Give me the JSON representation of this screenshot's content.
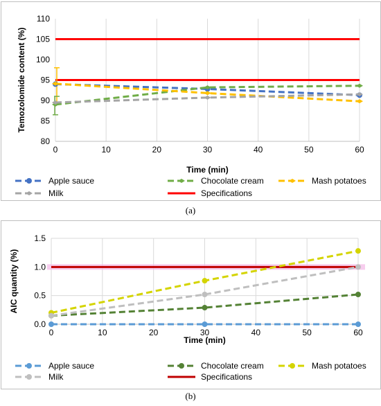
{
  "chart_data": [
    {
      "id": "a",
      "type": "line",
      "caption": "(a)",
      "xlabel": "Time (min)",
      "ylabel": "Temozolomide content (%)",
      "xlim": [
        0,
        60
      ],
      "ylim": [
        80,
        110
      ],
      "xticks": [
        0,
        10,
        20,
        30,
        40,
        50,
        60
      ],
      "yticks": [
        80,
        85,
        90,
        95,
        100,
        105,
        110
      ],
      "grid": "vertical",
      "legend": "bottom",
      "series": [
        {
          "name": "Apple sauce",
          "color": "#4472c4",
          "style": "dashed",
          "marker": "circle",
          "x": [
            0,
            30,
            60
          ],
          "y": [
            94.0,
            92.8,
            91.3
          ]
        },
        {
          "name": "Chocolate cream",
          "color": "#70ad47",
          "style": "dashed",
          "marker": "diamond",
          "x": [
            0,
            30,
            60
          ],
          "y": [
            89.0,
            93.2,
            93.6
          ]
        },
        {
          "name": "Mash potatoes",
          "color": "#ffc000",
          "style": "dashed",
          "marker": "diamond",
          "x": [
            0,
            30,
            60
          ],
          "y": [
            94.1,
            91.8,
            89.8
          ]
        },
        {
          "name": "Milk",
          "color": "#a5a5a5",
          "style": "dashed",
          "marker": "diamond",
          "x": [
            0,
            30,
            60
          ],
          "y": [
            89.5,
            90.7,
            91.5
          ]
        },
        {
          "name": "Specifications",
          "color": "#ff0000",
          "style": "solid",
          "marker": "none",
          "lines": [
            95,
            105
          ]
        }
      ],
      "error_bars": [
        {
          "series": "Mash potatoes",
          "x": 0,
          "y": 94.1,
          "low": 89.5,
          "high": 98.0
        },
        {
          "series": "Chocolate cream",
          "x": 0,
          "y": 89.0,
          "low": 86.5,
          "high": 91.0
        }
      ]
    },
    {
      "id": "b",
      "type": "line",
      "caption": "(b)",
      "xlabel": "Time (min)",
      "ylabel": "AIC quantity (%)",
      "xlim": [
        0,
        60
      ],
      "ylim": [
        0,
        1.5
      ],
      "xticks": [
        0,
        10,
        20,
        30,
        40,
        50,
        60
      ],
      "yticks": [
        0.0,
        0.5,
        1.0,
        1.5
      ],
      "ytick_labels": [
        "0.0",
        "0.5",
        "1.0",
        "1.5"
      ],
      "grid": "both",
      "legend": "bottom",
      "series": [
        {
          "name": "Apple sauce",
          "color": "#5b9bd5",
          "style": "dashed",
          "marker": "circle",
          "x": [
            0,
            30,
            60
          ],
          "y": [
            0.0,
            0.0,
            0.0
          ]
        },
        {
          "name": "Chocolate cream",
          "color": "#548235",
          "style": "dashed",
          "marker": "circle",
          "x": [
            0,
            30,
            60
          ],
          "y": [
            0.15,
            0.29,
            0.52
          ]
        },
        {
          "name": "Mash potatoes",
          "color": "#d4d400",
          "style": "dashed",
          "marker": "circle",
          "x": [
            0,
            30,
            60
          ],
          "y": [
            0.2,
            0.76,
            1.28
          ]
        },
        {
          "name": "Milk",
          "color": "#bfbfbf",
          "style": "dashed",
          "marker": "circle",
          "x": [
            0,
            30,
            60
          ],
          "y": [
            0.15,
            0.52,
            1.0
          ]
        },
        {
          "name": "Specifications",
          "color": "#c00000",
          "style": "solid",
          "marker": "none",
          "lines": [
            1.0
          ]
        }
      ],
      "error_bars": []
    }
  ]
}
